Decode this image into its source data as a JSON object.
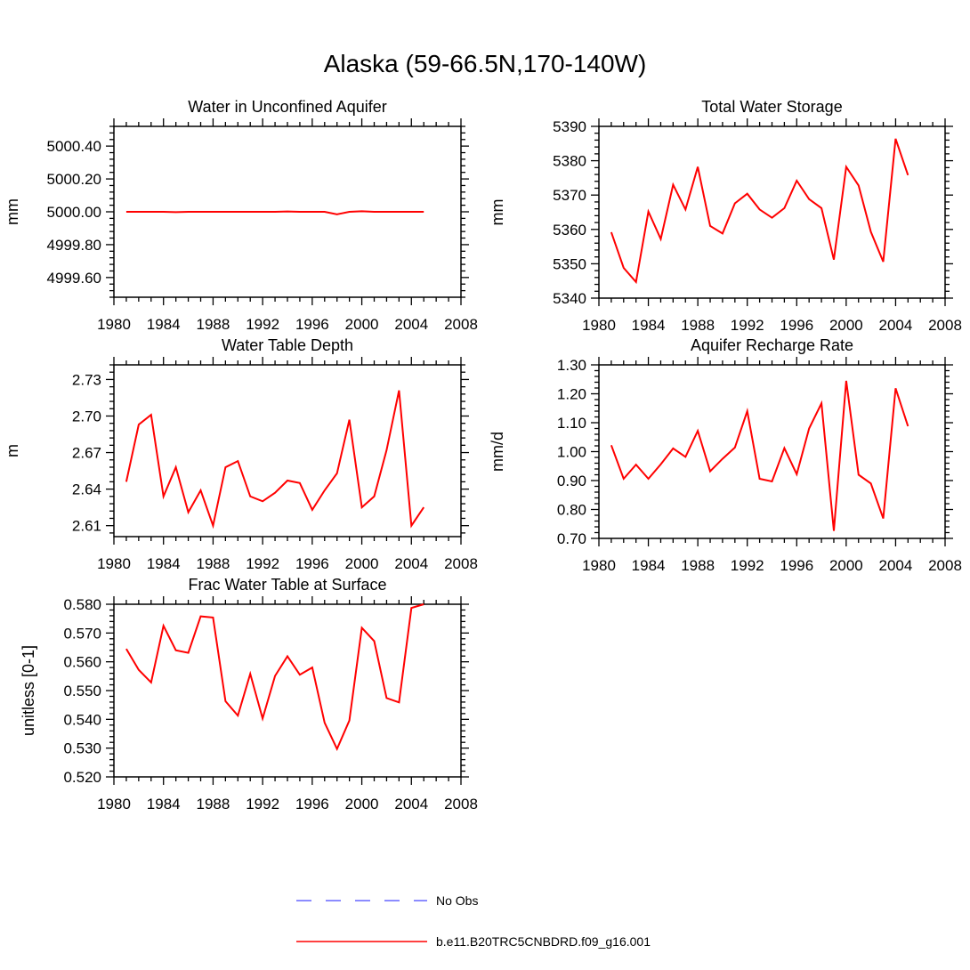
{
  "title": "Alaska (59-66.5N,170-140W)",
  "legend": {
    "obs_label": "No Obs",
    "model_label": "b.e11.B20TRC5CNBDRD.f09_g16.001",
    "obs_color": "#6666ff",
    "model_color": "#ff0000"
  },
  "chart_data": [
    {
      "type": "line",
      "title": "Water in Unconfined Aquifer",
      "ylabel": "mm",
      "xlim": [
        1980,
        2008
      ],
      "ylim": [
        4999.48,
        5000.52
      ],
      "xticks": [
        1980,
        1984,
        1988,
        1992,
        1996,
        2000,
        2004,
        2008
      ],
      "yticks": [
        4999.6,
        4999.8,
        5000.0,
        5000.2,
        5000.4
      ],
      "ytick_labels": [
        "4999.60",
        "4999.80",
        "5000.00",
        "5000.20",
        "5000.40"
      ],
      "series": [
        {
          "color": "#ff0000",
          "x": [
            1981,
            1982,
            1983,
            1984,
            1985,
            1986,
            1987,
            1988,
            1989,
            1990,
            1991,
            1992,
            1993,
            1994,
            1995,
            1996,
            1997,
            1998,
            1999,
            2000,
            2001,
            2002,
            2003,
            2004,
            2005
          ],
          "values": [
            5000.0,
            5000.0,
            5000.0,
            5000.0,
            4999.998,
            5000.0,
            5000.0,
            5000.0,
            5000.0,
            5000.0,
            5000.0,
            5000.0,
            5000.0,
            5000.002,
            5000.0,
            5000.0,
            5000.0,
            4999.985,
            5000.0,
            5000.003,
            5000.0,
            5000.0,
            5000.0,
            5000.0,
            5000.0
          ]
        }
      ]
    },
    {
      "type": "line",
      "title": "Total Water Storage",
      "ylabel": "mm",
      "xlim": [
        1980,
        2008
      ],
      "ylim": [
        5340,
        5390
      ],
      "xticks": [
        1980,
        1984,
        1988,
        1992,
        1996,
        2000,
        2004,
        2008
      ],
      "yticks": [
        5340,
        5350,
        5360,
        5370,
        5380,
        5390
      ],
      "ytick_labels": [
        "5340",
        "5350",
        "5360",
        "5370",
        "5380",
        "5390"
      ],
      "series": [
        {
          "color": "#ff0000",
          "x": [
            1981,
            1982,
            1983,
            1984,
            1985,
            1986,
            1987,
            1988,
            1989,
            1990,
            1991,
            1992,
            1993,
            1994,
            1995,
            1996,
            1997,
            1998,
            1999,
            2000,
            2001,
            2002,
            2003,
            2004,
            2005
          ],
          "values": [
            5359.2,
            5348.8,
            5344.7,
            5365.2,
            5357.2,
            5373.0,
            5365.8,
            5378.2,
            5361.0,
            5358.8,
            5367.6,
            5370.4,
            5365.8,
            5363.4,
            5366.2,
            5374.2,
            5368.8,
            5366.2,
            5351.2,
            5378.2,
            5372.8,
            5359.3,
            5350.6,
            5386.4,
            5375.8
          ]
        }
      ]
    },
    {
      "type": "line",
      "title": "Water Table Depth",
      "ylabel": "m",
      "xlim": [
        1980,
        2008
      ],
      "ylim": [
        2.601,
        2.742
      ],
      "xticks": [
        1980,
        1984,
        1988,
        1992,
        1996,
        2000,
        2004,
        2008
      ],
      "yticks": [
        2.61,
        2.64,
        2.67,
        2.7,
        2.73
      ],
      "ytick_labels": [
        "2.61",
        "2.64",
        "2.67",
        "2.70",
        "2.73"
      ],
      "series": [
        {
          "color": "#ff0000",
          "x": [
            1981,
            1982,
            1983,
            1984,
            1985,
            1986,
            1987,
            1988,
            1989,
            1990,
            1991,
            1992,
            1993,
            1994,
            1995,
            1996,
            1997,
            1998,
            1999,
            2000,
            2001,
            2002,
            2003,
            2004,
            2005
          ],
          "values": [
            2.646,
            2.693,
            2.701,
            2.634,
            2.658,
            2.621,
            2.639,
            2.61,
            2.658,
            2.663,
            2.634,
            2.63,
            2.637,
            2.647,
            2.645,
            2.623,
            2.639,
            2.653,
            2.697,
            2.625,
            2.634,
            2.672,
            2.721,
            2.61,
            2.625
          ]
        }
      ]
    },
    {
      "type": "line",
      "title": "Aquifer Recharge Rate",
      "ylabel": "mm/d",
      "xlim": [
        1980,
        2008
      ],
      "ylim": [
        0.7,
        1.3
      ],
      "xticks": [
        1980,
        1984,
        1988,
        1992,
        1996,
        2000,
        2004,
        2008
      ],
      "yticks": [
        0.7,
        0.8,
        0.9,
        1.0,
        1.1,
        1.2,
        1.3
      ],
      "ytick_labels": [
        "0.70",
        "0.80",
        "0.90",
        "1.00",
        "1.10",
        "1.20",
        "1.30"
      ],
      "series": [
        {
          "color": "#ff0000",
          "x": [
            1981,
            1982,
            1983,
            1984,
            1985,
            1986,
            1987,
            1988,
            1989,
            1990,
            1991,
            1992,
            1993,
            1994,
            1995,
            1996,
            1997,
            1998,
            1999,
            2000,
            2001,
            2002,
            2003,
            2004,
            2005
          ],
          "values": [
            1.022,
            0.906,
            0.955,
            0.906,
            0.956,
            1.011,
            0.982,
            1.072,
            0.932,
            0.975,
            1.014,
            1.14,
            0.906,
            0.897,
            1.012,
            0.922,
            1.08,
            1.167,
            0.726,
            1.245,
            0.92,
            0.89,
            0.769,
            1.219,
            1.088
          ]
        }
      ]
    },
    {
      "type": "line",
      "title": "Frac Water Table at Surface",
      "ylabel": "unitless [0-1]",
      "xlim": [
        1980,
        2008
      ],
      "ylim": [
        0.52,
        0.58
      ],
      "xticks": [
        1980,
        1984,
        1988,
        1992,
        1996,
        2000,
        2004,
        2008
      ],
      "yticks": [
        0.52,
        0.53,
        0.54,
        0.55,
        0.56,
        0.57,
        0.58
      ],
      "ytick_labels": [
        "0.520",
        "0.530",
        "0.540",
        "0.550",
        "0.560",
        "0.570",
        "0.580"
      ],
      "series": [
        {
          "color": "#ff0000",
          "x": [
            1981,
            1982,
            1983,
            1984,
            1985,
            1986,
            1987,
            1988,
            1989,
            1990,
            1991,
            1992,
            1993,
            1994,
            1995,
            1996,
            1997,
            1998,
            1999,
            2000,
            2001,
            2002,
            2003,
            2004,
            2005
          ],
          "values": [
            0.5645,
            0.5572,
            0.5528,
            0.5725,
            0.564,
            0.5631,
            0.5758,
            0.5754,
            0.5463,
            0.5413,
            0.5558,
            0.5403,
            0.5551,
            0.5619,
            0.5555,
            0.558,
            0.5388,
            0.5297,
            0.5396,
            0.5718,
            0.5672,
            0.5474,
            0.5459,
            0.5787,
            0.58
          ]
        }
      ]
    }
  ]
}
